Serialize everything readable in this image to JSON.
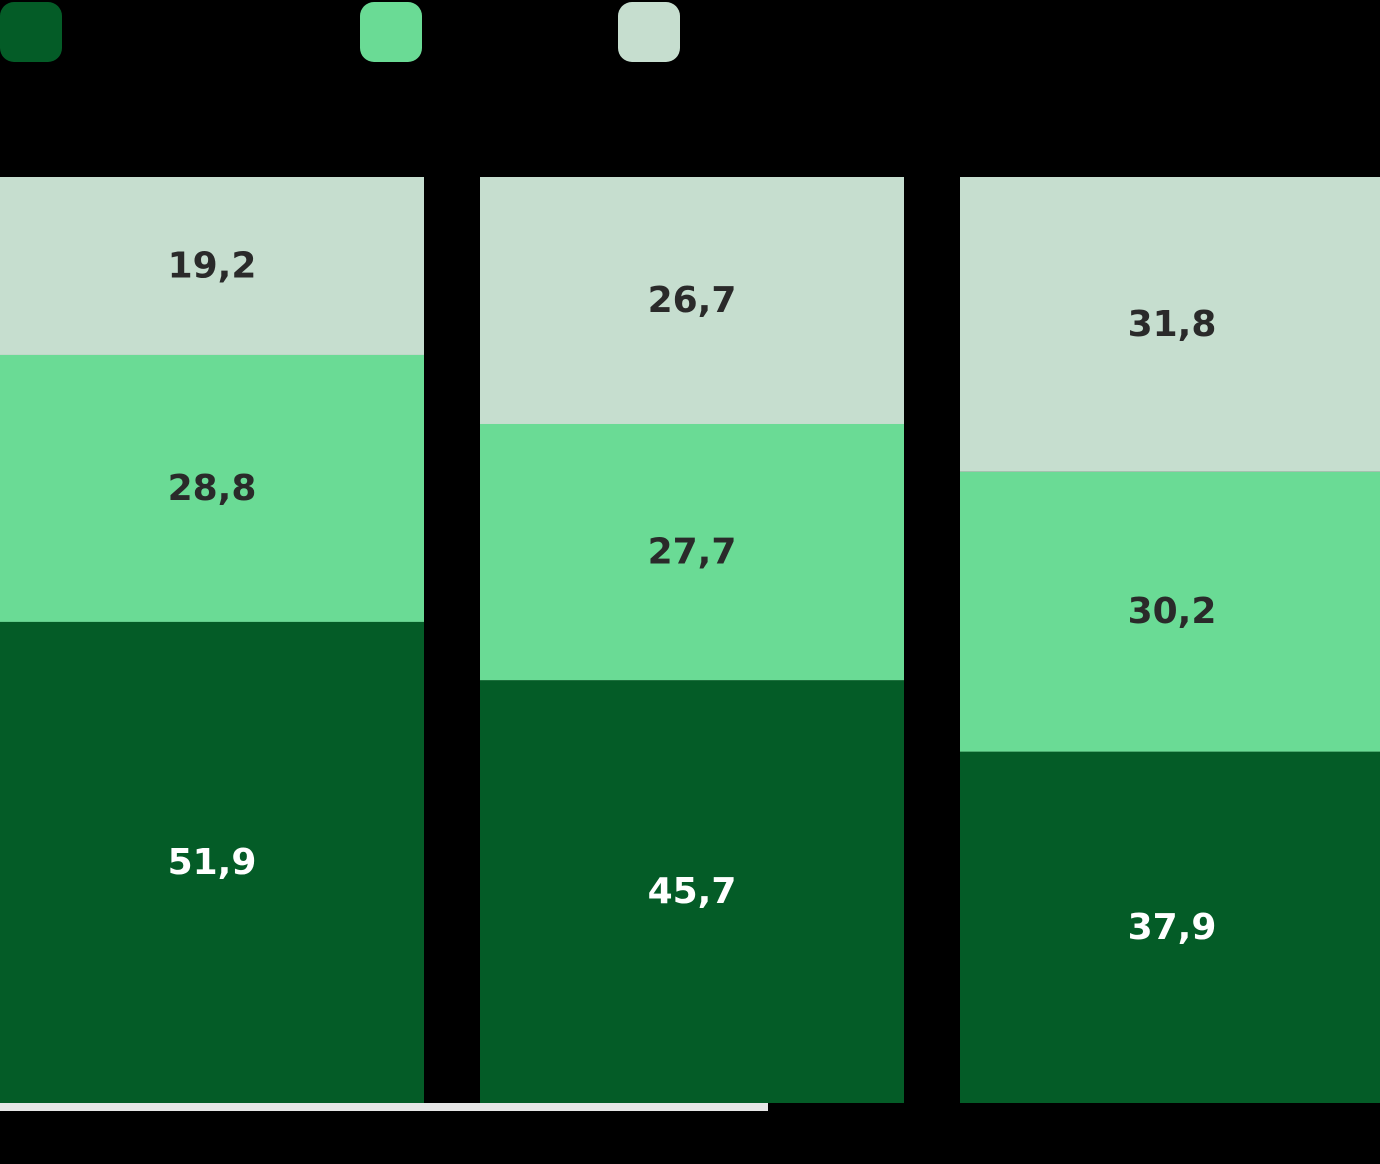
{
  "chart_data": {
    "type": "bar",
    "stacked": true,
    "normalized_percent": true,
    "categories": [
      "",
      "",
      ""
    ],
    "series": [
      {
        "name": "",
        "color": "#045C27",
        "label_color": "#FFFFFF",
        "values": [
          51.9,
          45.7,
          37.9
        ]
      },
      {
        "name": "",
        "color": "#6ADB95",
        "label_color": "#2A2A2A",
        "values": [
          28.8,
          27.7,
          30.2
        ]
      },
      {
        "name": "",
        "color": "#C6DECF",
        "label_color": "#2A2A2A",
        "values": [
          19.2,
          26.7,
          31.8
        ]
      }
    ],
    "value_labels": [
      [
        "51,9",
        "45,7",
        "37,9"
      ],
      [
        "28,8",
        "27,7",
        "30,2"
      ],
      [
        "19,2",
        "26,7",
        "31,8"
      ]
    ],
    "ylim": [
      0,
      100
    ],
    "legend_position": "top-left",
    "grid": false,
    "baseline_color": "#E6E6E6"
  }
}
